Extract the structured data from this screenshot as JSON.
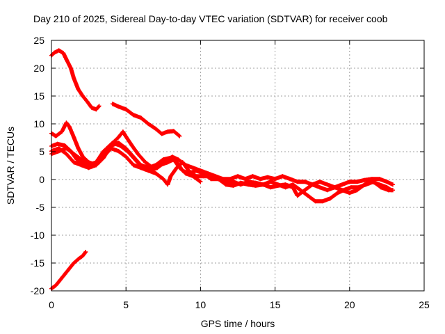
{
  "chart_data": {
    "type": "scatter",
    "title": "Day 210 of 2025, Sidereal Day-to-day VTEC variation (SDTVAR) for receiver coob",
    "xlabel": "GPS time / hours",
    "ylabel": "SDTVAR / TECUs",
    "xlim": [
      0,
      25
    ],
    "ylim": [
      -20,
      25
    ],
    "xticks": [
      0,
      5,
      10,
      15,
      20,
      25
    ],
    "yticks": [
      -20,
      -15,
      -10,
      -5,
      0,
      5,
      10,
      15,
      20,
      25
    ],
    "grid": true,
    "marker": "plus",
    "color": "#ff0000",
    "series": [
      {
        "name": "arc-1",
        "points": [
          [
            0.0,
            22.3
          ],
          [
            0.2,
            22.8
          ],
          [
            0.5,
            23.2
          ],
          [
            0.8,
            22.7
          ],
          [
            1.0,
            21.6
          ],
          [
            1.3,
            20.0
          ],
          [
            1.5,
            18.2
          ],
          [
            1.8,
            16.2
          ],
          [
            2.1,
            15.0
          ],
          [
            2.4,
            14.0
          ],
          [
            2.7,
            12.9
          ],
          [
            3.0,
            12.6
          ],
          [
            3.2,
            13.2
          ]
        ]
      },
      {
        "name": "arc-2",
        "points": [
          [
            4.1,
            13.6
          ],
          [
            4.5,
            13.1
          ],
          [
            5.0,
            12.6
          ],
          [
            5.5,
            11.6
          ],
          [
            6.0,
            11.1
          ],
          [
            6.5,
            10.0
          ],
          [
            7.0,
            9.1
          ],
          [
            7.4,
            8.2
          ],
          [
            7.8,
            8.6
          ],
          [
            8.2,
            8.7
          ],
          [
            8.6,
            7.8
          ]
        ]
      },
      {
        "name": "arc-3",
        "points": [
          [
            0.0,
            8.3
          ],
          [
            0.3,
            7.8
          ],
          [
            0.7,
            8.6
          ],
          [
            1.0,
            10.2
          ],
          [
            1.2,
            9.5
          ],
          [
            1.5,
            7.6
          ],
          [
            1.8,
            5.6
          ],
          [
            2.1,
            4.1
          ],
          [
            2.5,
            3.1
          ],
          [
            3.0,
            2.6
          ],
          [
            3.5,
            3.9
          ],
          [
            4.0,
            6.3
          ],
          [
            4.5,
            7.6
          ],
          [
            4.8,
            8.6
          ],
          [
            5.0,
            7.7
          ],
          [
            5.4,
            6.1
          ],
          [
            5.8,
            4.6
          ],
          [
            6.3,
            3.1
          ],
          [
            6.8,
            2.1
          ],
          [
            7.3,
            2.6
          ],
          [
            7.8,
            3.1
          ],
          [
            8.2,
            3.6
          ],
          [
            8.6,
            2.1
          ],
          [
            9.0,
            1.1
          ],
          [
            9.5,
            0.6
          ],
          [
            10.0,
            -0.4
          ]
        ]
      },
      {
        "name": "arc-4",
        "points": [
          [
            0.0,
            6.0
          ],
          [
            0.4,
            6.4
          ],
          [
            0.9,
            6.1
          ],
          [
            1.3,
            5.1
          ],
          [
            1.7,
            3.6
          ],
          [
            2.2,
            2.6
          ],
          [
            2.7,
            2.4
          ],
          [
            3.2,
            3.1
          ],
          [
            3.7,
            5.6
          ],
          [
            4.1,
            6.6
          ],
          [
            4.6,
            6.1
          ],
          [
            5.1,
            5.1
          ],
          [
            5.6,
            3.6
          ],
          [
            6.1,
            2.1
          ],
          [
            6.6,
            1.6
          ],
          [
            7.1,
            2.1
          ],
          [
            7.6,
            3.1
          ],
          [
            8.1,
            4.1
          ],
          [
            8.5,
            3.6
          ],
          [
            9.0,
            2.6
          ],
          [
            9.5,
            2.1
          ],
          [
            10.0,
            1.6
          ],
          [
            10.5,
            1.1
          ],
          [
            11.0,
            0.6
          ],
          [
            11.5,
            0.1
          ],
          [
            12.0,
            0.1
          ],
          [
            12.5,
            0.6
          ],
          [
            13.0,
            0.1
          ],
          [
            13.5,
            0.6
          ],
          [
            14.0,
            0.1
          ],
          [
            14.5,
            0.4
          ],
          [
            15.0,
            0.1
          ],
          [
            15.5,
            0.6
          ],
          [
            16.0,
            0.1
          ],
          [
            16.5,
            -0.4
          ],
          [
            17.0,
            -0.4
          ],
          [
            17.5,
            -0.9
          ],
          [
            18.0,
            -1.4
          ],
          [
            18.5,
            -1.9
          ],
          [
            19.0,
            -1.4
          ],
          [
            19.5,
            -0.9
          ],
          [
            20.0,
            -0.4
          ],
          [
            20.5,
            -0.4
          ],
          [
            21.0,
            -0.1
          ],
          [
            21.5,
            0.1
          ],
          [
            22.0,
            0.1
          ],
          [
            22.5,
            -0.4
          ],
          [
            22.9,
            -0.9
          ]
        ]
      },
      {
        "name": "arc-5",
        "points": [
          [
            0.0,
            4.6
          ],
          [
            0.5,
            5.1
          ],
          [
            1.0,
            5.6
          ],
          [
            1.5,
            4.6
          ],
          [
            2.0,
            3.6
          ],
          [
            2.5,
            2.6
          ],
          [
            3.0,
            3.1
          ],
          [
            3.5,
            5.1
          ],
          [
            4.0,
            6.1
          ],
          [
            4.5,
            6.6
          ],
          [
            5.0,
            5.6
          ],
          [
            5.5,
            4.1
          ],
          [
            6.0,
            2.6
          ],
          [
            6.5,
            2.1
          ],
          [
            7.0,
            2.6
          ],
          [
            7.5,
            3.6
          ],
          [
            8.0,
            3.9
          ],
          [
            8.4,
            3.1
          ],
          [
            8.8,
            1.6
          ],
          [
            9.2,
            1.1
          ],
          [
            9.7,
            1.6
          ],
          [
            10.2,
            1.1
          ],
          [
            10.7,
            0.1
          ],
          [
            11.2,
            0.1
          ],
          [
            11.7,
            -0.4
          ],
          [
            12.2,
            -0.4
          ],
          [
            12.7,
            -0.9
          ],
          [
            13.2,
            -0.4
          ],
          [
            13.7,
            -0.6
          ],
          [
            14.2,
            -0.9
          ],
          [
            14.7,
            -0.4
          ],
          [
            15.2,
            -0.9
          ],
          [
            15.7,
            -1.4
          ],
          [
            16.2,
            -0.9
          ],
          [
            16.7,
            -1.9
          ],
          [
            17.2,
            -2.9
          ],
          [
            17.7,
            -3.9
          ],
          [
            18.2,
            -3.9
          ],
          [
            18.7,
            -3.4
          ],
          [
            19.2,
            -2.4
          ],
          [
            19.6,
            -1.9
          ],
          [
            20.1,
            -1.4
          ],
          [
            20.6,
            -1.4
          ],
          [
            21.1,
            -0.9
          ],
          [
            21.6,
            -0.4
          ],
          [
            22.1,
            -1.4
          ],
          [
            22.6,
            -1.9
          ],
          [
            22.9,
            -1.9
          ]
        ]
      },
      {
        "name": "arc-6",
        "points": [
          [
            0.0,
            5.1
          ],
          [
            0.5,
            5.6
          ],
          [
            1.0,
            4.6
          ],
          [
            1.5,
            3.1
          ],
          [
            2.0,
            2.6
          ],
          [
            2.5,
            2.1
          ],
          [
            3.0,
            2.6
          ],
          [
            3.5,
            4.1
          ],
          [
            4.0,
            5.6
          ],
          [
            4.5,
            5.1
          ],
          [
            5.0,
            4.1
          ],
          [
            5.5,
            2.6
          ],
          [
            6.0,
            2.1
          ],
          [
            6.5,
            1.6
          ],
          [
            7.0,
            1.1
          ],
          [
            7.5,
            0.1
          ],
          [
            7.8,
            -0.9
          ],
          [
            8.0,
            0.6
          ],
          [
            8.4,
            2.1
          ],
          [
            8.8,
            3.1
          ],
          [
            9.2,
            1.6
          ],
          [
            9.7,
            0.6
          ],
          [
            10.2,
            0.6
          ],
          [
            10.7,
            0.6
          ],
          [
            11.2,
            0.1
          ],
          [
            11.7,
            -0.9
          ],
          [
            12.2,
            -1.1
          ],
          [
            12.7,
            -0.6
          ],
          [
            13.2,
            -0.9
          ],
          [
            13.7,
            -1.1
          ],
          [
            14.2,
            -0.9
          ],
          [
            14.7,
            -1.4
          ],
          [
            15.2,
            -1.1
          ],
          [
            15.7,
            -0.9
          ],
          [
            16.2,
            -1.4
          ],
          [
            16.5,
            -2.9
          ],
          [
            17.0,
            -1.9
          ],
          [
            17.5,
            -0.9
          ],
          [
            18.0,
            -0.4
          ],
          [
            18.5,
            -0.9
          ],
          [
            19.0,
            -1.4
          ],
          [
            19.5,
            -1.9
          ],
          [
            20.0,
            -2.4
          ],
          [
            20.5,
            -1.9
          ],
          [
            21.0,
            -0.9
          ],
          [
            21.5,
            -0.4
          ],
          [
            22.0,
            -0.9
          ],
          [
            22.5,
            -1.4
          ],
          [
            22.8,
            -1.9
          ]
        ]
      },
      {
        "name": "arc-7",
        "points": [
          [
            0.0,
            -19.6
          ],
          [
            0.3,
            -19.0
          ],
          [
            0.6,
            -18.0
          ],
          [
            0.9,
            -17.0
          ],
          [
            1.2,
            -16.0
          ],
          [
            1.5,
            -15.0
          ],
          [
            1.8,
            -14.3
          ],
          [
            2.1,
            -13.7
          ],
          [
            2.3,
            -13.0
          ]
        ]
      }
    ]
  }
}
